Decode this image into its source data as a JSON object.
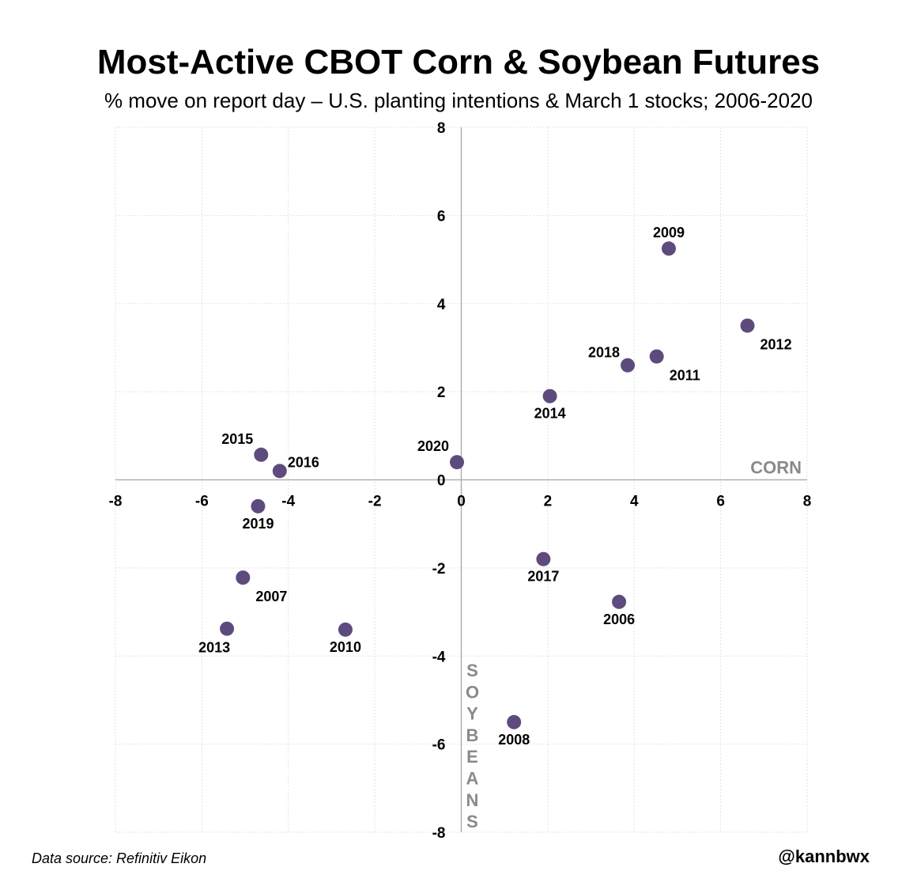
{
  "header": {
    "title": "Most-Active CBOT Corn & Soybean Futures",
    "subtitle": "% move on report day – U.S. planting intentions & March 1 stocks; 2006-2020"
  },
  "footer": {
    "source": "Data source: Refinitiv Eikon",
    "handle": "@kannbwx"
  },
  "chart_data": {
    "type": "scatter",
    "title": "Most-Active CBOT Corn & Soybean Futures",
    "subtitle": "% move on report day – U.S. planting intentions & March 1 stocks; 2006-2020",
    "xlabel": "CORN",
    "ylabel": "SOYBEANS",
    "xlim": [
      -8,
      8
    ],
    "ylim": [
      -8,
      8
    ],
    "xticks": [
      -8,
      -6,
      -4,
      -2,
      0,
      2,
      4,
      6,
      8
    ],
    "yticks": [
      -8,
      -6,
      -4,
      -2,
      0,
      2,
      4,
      6,
      8
    ],
    "grid": true,
    "point_color": "#5e4b7e",
    "axis_label_color": "#8a8a8a",
    "points": [
      {
        "label": "2006",
        "x": 3.65,
        "y": -2.77,
        "label_pos": "below"
      },
      {
        "label": "2007",
        "x": -5.05,
        "y": -2.22,
        "label_pos": "right-below"
      },
      {
        "label": "2008",
        "x": 1.22,
        "y": -5.5,
        "label_pos": "below"
      },
      {
        "label": "2009",
        "x": 4.8,
        "y": 5.25,
        "label_pos": "above"
      },
      {
        "label": "2010",
        "x": -2.68,
        "y": -3.4,
        "label_pos": "below"
      },
      {
        "label": "2011",
        "x": 4.52,
        "y": 2.8,
        "label_pos": "right-below"
      },
      {
        "label": "2012",
        "x": 6.62,
        "y": 3.5,
        "label_pos": "right-below"
      },
      {
        "label": "2013",
        "x": -5.42,
        "y": -3.38,
        "label_pos": "below-left"
      },
      {
        "label": "2014",
        "x": 2.05,
        "y": 1.9,
        "label_pos": "below"
      },
      {
        "label": "2015",
        "x": -4.63,
        "y": 0.57,
        "label_pos": "above-left"
      },
      {
        "label": "2016",
        "x": -4.2,
        "y": 0.2,
        "label_pos": "right-above"
      },
      {
        "label": "2017",
        "x": 1.9,
        "y": -1.8,
        "label_pos": "below"
      },
      {
        "label": "2018",
        "x": 3.85,
        "y": 2.6,
        "label_pos": "left-above"
      },
      {
        "label": "2019",
        "x": -4.7,
        "y": -0.6,
        "label_pos": "below"
      },
      {
        "label": "2020",
        "x": -0.1,
        "y": 0.4,
        "label_pos": "above-left"
      }
    ]
  }
}
